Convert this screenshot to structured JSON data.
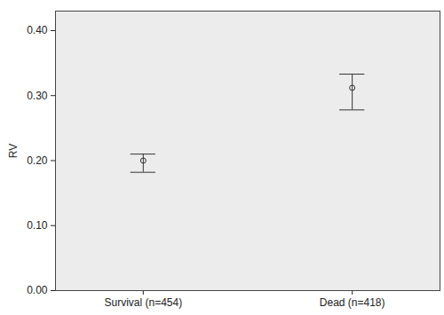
{
  "chart_data": {
    "type": "errorbar",
    "categories": [
      "Survival (n=454)",
      "Dead (n=418)"
    ],
    "values": [
      0.2,
      0.312
    ],
    "lower": [
      0.182,
      0.278
    ],
    "upper": [
      0.21,
      0.333
    ],
    "y_label": "RV",
    "ylim": [
      0,
      0.43
    ],
    "yticks": [
      {
        "value": 0,
        "label": "0.00"
      },
      {
        "value": 0.1,
        "label": "0.10"
      },
      {
        "value": 0.2,
        "label": "0.20"
      },
      {
        "value": 0.3,
        "label": "0.30"
      },
      {
        "value": 0.4,
        "label": "0.40"
      }
    ],
    "marker": "circle",
    "grid": false
  }
}
